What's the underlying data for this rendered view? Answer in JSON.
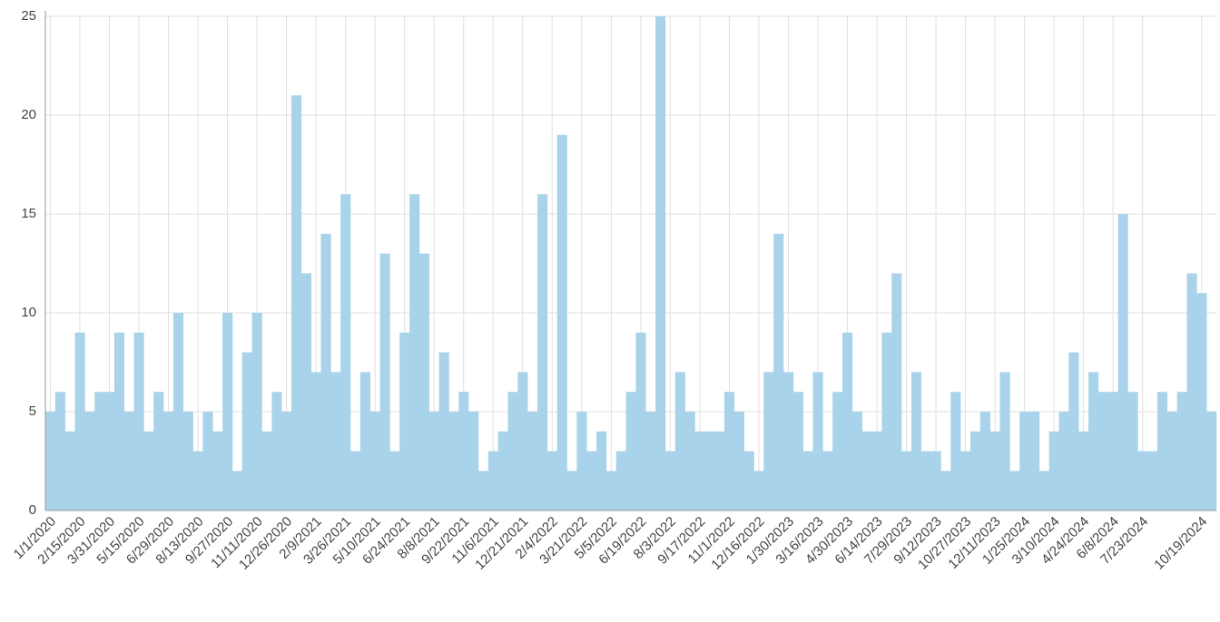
{
  "chart_data": {
    "type": "bar",
    "color": "#a9d3ea",
    "grid": true,
    "ylim": [
      0,
      25
    ],
    "yticks": [
      0,
      5,
      10,
      15,
      20,
      25
    ],
    "categories": [
      "1/1/2020",
      null,
      null,
      "2/15/2020",
      null,
      null,
      "3/31/2020",
      null,
      null,
      "5/15/2020",
      null,
      null,
      "6/29/2020",
      null,
      null,
      "8/13/2020",
      null,
      null,
      "9/27/2020",
      null,
      null,
      "11/11/2020",
      null,
      null,
      "12/26/2020",
      null,
      null,
      "2/9/2021",
      null,
      null,
      "3/26/2021",
      null,
      null,
      "5/10/2021",
      null,
      null,
      "6/24/2021",
      null,
      null,
      "8/8/2021",
      null,
      null,
      "9/22/2021",
      null,
      null,
      "11/6/2021",
      null,
      null,
      "12/21/2021",
      null,
      null,
      "2/4/2022",
      null,
      null,
      "3/21/2022",
      null,
      null,
      "5/5/2022",
      null,
      null,
      "6/19/2022",
      null,
      null,
      "8/3/2022",
      null,
      null,
      "9/17/2022",
      null,
      null,
      "11/1/2022",
      null,
      null,
      "12/16/2022",
      null,
      null,
      "1/30/2023",
      null,
      null,
      "3/16/2023",
      null,
      null,
      "4/30/2023",
      null,
      null,
      "6/14/2023",
      null,
      null,
      "7/29/2023",
      null,
      null,
      "9/12/2023",
      null,
      null,
      "10/27/2023",
      null,
      null,
      "12/11/2023",
      null,
      null,
      "1/25/2024",
      null,
      null,
      "3/10/2024",
      null,
      null,
      "4/24/2024",
      null,
      null,
      "6/8/2024",
      null,
      null,
      "7/23/2024",
      null,
      null,
      null,
      null,
      null,
      "10/19/2024",
      null
    ],
    "values": [
      5,
      6,
      4,
      9,
      5,
      6,
      6,
      9,
      5,
      9,
      4,
      6,
      5,
      10,
      5,
      3,
      5,
      4,
      10,
      2,
      8,
      10,
      4,
      6,
      5,
      21,
      12,
      7,
      14,
      7,
      16,
      3,
      7,
      5,
      13,
      3,
      9,
      16,
      13,
      5,
      8,
      5,
      6,
      5,
      2,
      3,
      4,
      6,
      7,
      5,
      16,
      3,
      19,
      2,
      5,
      3,
      4,
      2,
      3,
      6,
      9,
      5,
      25,
      3,
      7,
      5,
      4,
      4,
      4,
      6,
      5,
      3,
      2,
      7,
      14,
      7,
      6,
      3,
      7,
      3,
      6,
      9,
      5,
      4,
      4,
      9,
      12,
      3,
      7,
      3,
      3,
      2,
      6,
      3,
      4,
      5,
      4,
      7,
      2,
      5,
      5,
      2,
      4,
      5,
      8,
      4,
      7,
      6,
      6,
      15,
      6,
      3,
      3,
      6,
      5,
      6,
      12,
      11,
      5
    ]
  }
}
